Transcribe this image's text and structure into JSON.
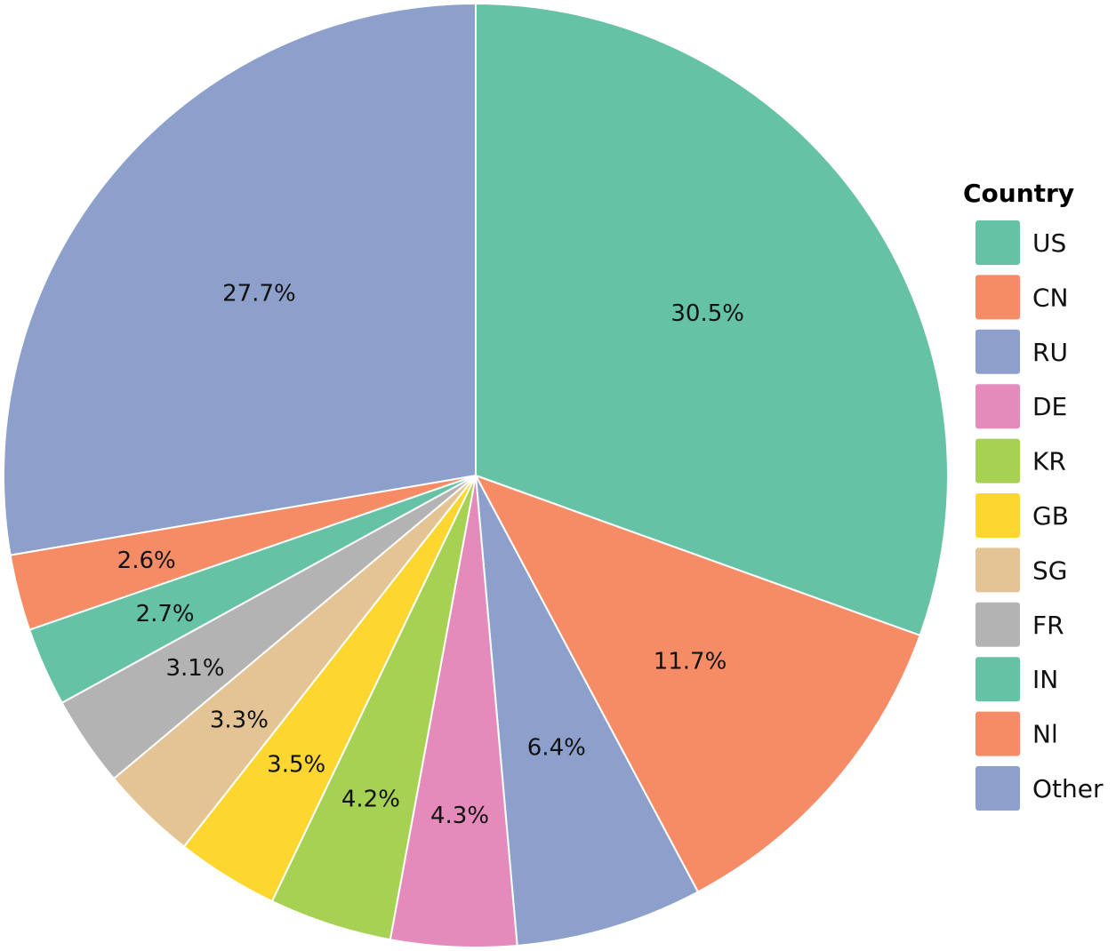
{
  "chart_data": {
    "type": "pie",
    "title": "",
    "legend_title": "Country",
    "legend_position": "right",
    "slices": [
      {
        "label": "US",
        "value": 30.5,
        "text": "30.5%",
        "color": "#66c2a5"
      },
      {
        "label": "CN",
        "value": 11.7,
        "text": "11.7%",
        "color": "#f68c66"
      },
      {
        "label": "RU",
        "value": 6.4,
        "text": "6.4%",
        "color": "#8da0cb"
      },
      {
        "label": "DE",
        "value": 4.3,
        "text": "4.3%",
        "color": "#e48bbb"
      },
      {
        "label": "KR",
        "value": 4.2,
        "text": "4.2%",
        "color": "#a6d153"
      },
      {
        "label": "GB",
        "value": 3.5,
        "text": "3.5%",
        "color": "#fed630"
      },
      {
        "label": "SG",
        "value": 3.3,
        "text": "3.3%",
        "color": "#e4c494"
      },
      {
        "label": "FR",
        "value": 3.1,
        "text": "3.1%",
        "color": "#b3b3b3"
      },
      {
        "label": "IN",
        "value": 2.7,
        "text": "2.7%",
        "color": "#66c2a5"
      },
      {
        "label": "Nl",
        "value": 2.6,
        "text": "2.6%",
        "color": "#f68c66"
      },
      {
        "label": "Other",
        "value": 27.7,
        "text": "27.7%",
        "color": "#8da0cb"
      }
    ]
  }
}
